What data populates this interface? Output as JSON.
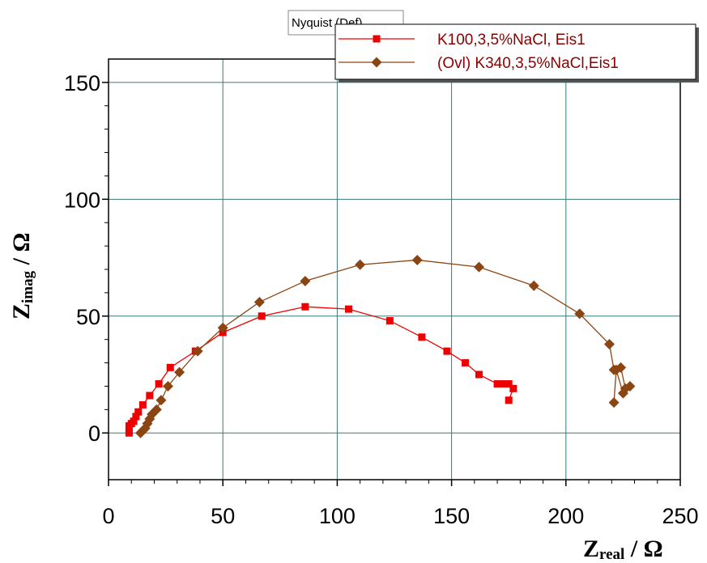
{
  "chart_data": {
    "type": "scatter",
    "legend_title": "Nyquist (Def)",
    "xlabel": {
      "main": "Z",
      "sub": "real",
      "unit": " / Ω"
    },
    "ylabel": {
      "main": "Z",
      "sub": "imag",
      "unit": " / Ω"
    },
    "xlim": [
      0,
      250
    ],
    "ylim": [
      -20,
      160
    ],
    "xticks": [
      0,
      50,
      100,
      150,
      200,
      250
    ],
    "yticks": [
      0,
      50,
      100,
      150
    ],
    "grid": true,
    "legend_position": "top-right",
    "series": [
      {
        "name": "K100,3,5%NaCl, Eis1",
        "color": "#ee0000",
        "marker": "square",
        "x": [
          175,
          177,
          175,
          173,
          170,
          162,
          156,
          148,
          137,
          123,
          105,
          86,
          67,
          50,
          38,
          27,
          22,
          18,
          15,
          13,
          12,
          11,
          10,
          9,
          9,
          9
        ],
        "y": [
          14,
          19,
          21,
          21,
          21,
          25,
          30,
          35,
          41,
          48,
          53,
          54,
          50,
          43,
          35,
          28,
          21,
          16,
          12,
          9,
          7,
          5,
          4,
          3,
          1,
          0
        ]
      },
      {
        "name": "(Ovl) K340,3,5%NaCl,Eis1",
        "color": "#8b4513",
        "marker": "diamond",
        "x": [
          221,
          222,
          225,
          228,
          226,
          224,
          221,
          219,
          206,
          186,
          162,
          135,
          110,
          86,
          66,
          50,
          39,
          31,
          26,
          23,
          21,
          19,
          18,
          17,
          16,
          15,
          14
        ],
        "y": [
          13,
          27,
          17,
          20,
          19,
          28,
          27,
          38,
          51,
          63,
          71,
          74,
          72,
          65,
          56,
          45,
          35,
          26,
          20,
          14,
          10,
          8,
          6,
          4,
          2,
          1,
          0
        ]
      }
    ]
  }
}
